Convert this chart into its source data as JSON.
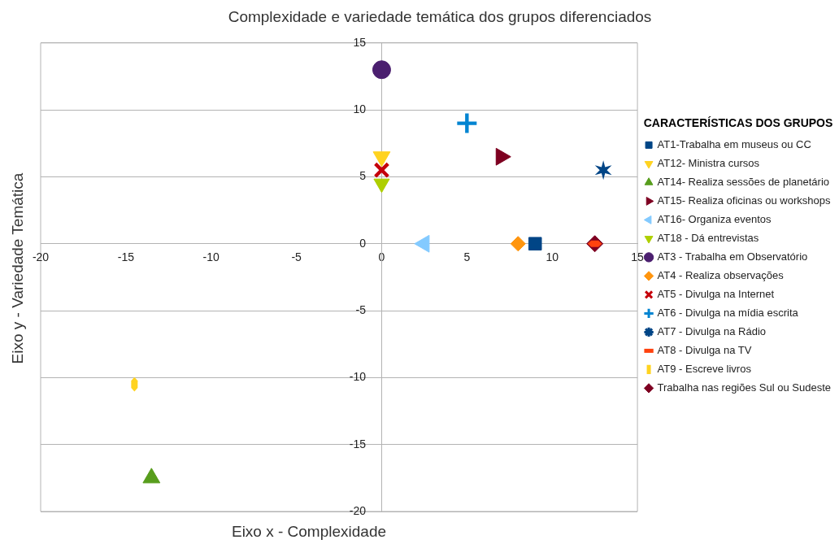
{
  "chart_data": {
    "type": "scatter",
    "title": "Complexidade e variedade temática dos grupos diferenciados",
    "xlabel": "Eixo x - Complexidade",
    "ylabel": "Eixo y - Variedade Temática",
    "legend_title": "CARACTERÍSTICAS DOS GRUPOS",
    "xlim": [
      -20,
      15
    ],
    "xticks": [
      -20,
      -15,
      -10,
      -5,
      0,
      5,
      10,
      15
    ],
    "ylim": [
      -20,
      15
    ],
    "yticks": [
      -20,
      -15,
      -10,
      -5,
      0,
      5,
      10,
      15
    ],
    "grid": "y",
    "legend": "right",
    "series": [
      {
        "name": "AT1-Trabalha em museus ou CC",
        "color": "#004586",
        "marker": "square",
        "x": [
          9
        ],
        "values": [
          0
        ]
      },
      {
        "name": "AT12- Ministra cursos",
        "color": "#ffd320",
        "x": [
          0
        ],
        "values": [
          6.5
        ]
      },
      {
        "name": "AT14- Realiza sessões de planetário",
        "color": "#579d1c",
        "marker": "triangle",
        "x": [
          -13.5
        ],
        "values": [
          -17.5
        ]
      },
      {
        "name": "AT15- Realiza oficinas ou workshops",
        "color": "#7e0021",
        "x": [
          7
        ],
        "values": [
          6.5
        ]
      },
      {
        "name": "AT16- Organiza eventos",
        "color": "#83caff",
        "x": [
          2.5
        ],
        "values": [
          0
        ]
      },
      {
        "name": "AT18 - Dá entrevistas",
        "color": "#aecf00",
        "x": [
          0
        ],
        "values": [
          4.5
        ]
      },
      {
        "name": "AT3 - Trabalha em Observatório",
        "color": "#4b1f6f",
        "marker": "circle",
        "x": [
          0
        ],
        "values": [
          13
        ]
      },
      {
        "name": "AT4 - Realiza observações",
        "color": "#ff950e",
        "x": [
          8
        ],
        "values": [
          0
        ]
      },
      {
        "name": "AT5 - Divulga na Internet",
        "color": "#c5000b",
        "x": [
          0
        ],
        "values": [
          5.5
        ]
      },
      {
        "name": "AT6 - Divulga na mídia escrita",
        "color": "#0084d1",
        "x": [
          5
        ],
        "values": [
          9
        ]
      },
      {
        "name": "AT7 - Divulga na Rádio",
        "color": "#004586",
        "x": [
          13
        ],
        "values": [
          5.5
        ]
      },
      {
        "name": "AT8 - Divulga na TV",
        "color": "#ff420e",
        "x": [
          12.5
        ],
        "values": [
          0
        ]
      },
      {
        "name": "AT9 - Escreve livros",
        "color": "#ffd320",
        "x": [
          -14.5
        ],
        "values": [
          -10.5
        ]
      },
      {
        "name": "Trabalha nas regiões Sul ou Sudeste",
        "color": "#7e0021",
        "marker": "diamond",
        "x": [
          12.5
        ],
        "values": [
          0
        ]
      }
    ]
  }
}
